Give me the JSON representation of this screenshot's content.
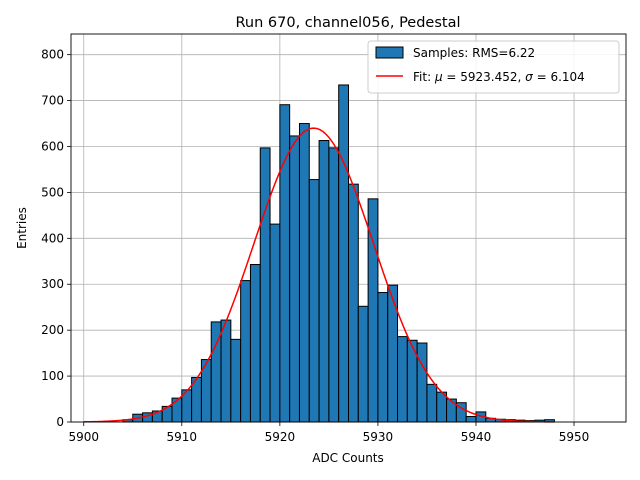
{
  "chart_data": {
    "type": "bar",
    "title": "Run 670, channel056, Pedestal",
    "xlabel": "ADC Counts",
    "ylabel": "Entries",
    "xlim": [
      5898.7,
      5955.3
    ],
    "ylim": [
      0,
      845
    ],
    "grid": true,
    "legend_placement": "top-right",
    "xticks": [
      5900,
      5910,
      5920,
      5930,
      5940,
      5950
    ],
    "yticks": [
      0,
      100,
      200,
      300,
      400,
      500,
      600,
      700,
      800
    ],
    "histogram": {
      "name": "Samples: RMS=6.22",
      "color": "#1f77b4",
      "edge_color": "#000000",
      "bin_edges": [
        5904,
        5905,
        5906,
        5907,
        5908,
        5909,
        5910,
        5911,
        5912,
        5913,
        5914,
        5915,
        5916,
        5917,
        5918,
        5919,
        5920,
        5921,
        5922,
        5923,
        5924,
        5925,
        5926,
        5927,
        5928,
        5929,
        5930,
        5931,
        5932,
        5933,
        5934,
        5935,
        5936,
        5937,
        5938,
        5939,
        5940,
        5941,
        5942,
        5943,
        5944,
        5945,
        5946,
        5947,
        5948
      ],
      "counts": [
        5,
        17,
        20,
        24,
        34,
        52,
        70,
        97,
        136,
        218,
        222,
        180,
        308,
        343,
        597,
        431,
        691,
        623,
        650,
        528,
        613,
        597,
        734,
        518,
        252,
        486,
        282,
        298,
        186,
        178,
        172,
        82,
        65,
        50,
        42,
        12,
        22,
        8,
        6,
        5,
        4,
        3,
        4,
        5
      ]
    },
    "fit": {
      "name_prefix": "Fit: ",
      "mu_symbol": "μ",
      "mu_text": " = 5923.452, ",
      "sigma_symbol": "σ",
      "sigma_text": " = 6.104",
      "mu": 5923.452,
      "sigma": 6.104,
      "amplitude": 640,
      "x_range": [
        5900,
        5948
      ],
      "color": "#ff0000"
    }
  }
}
